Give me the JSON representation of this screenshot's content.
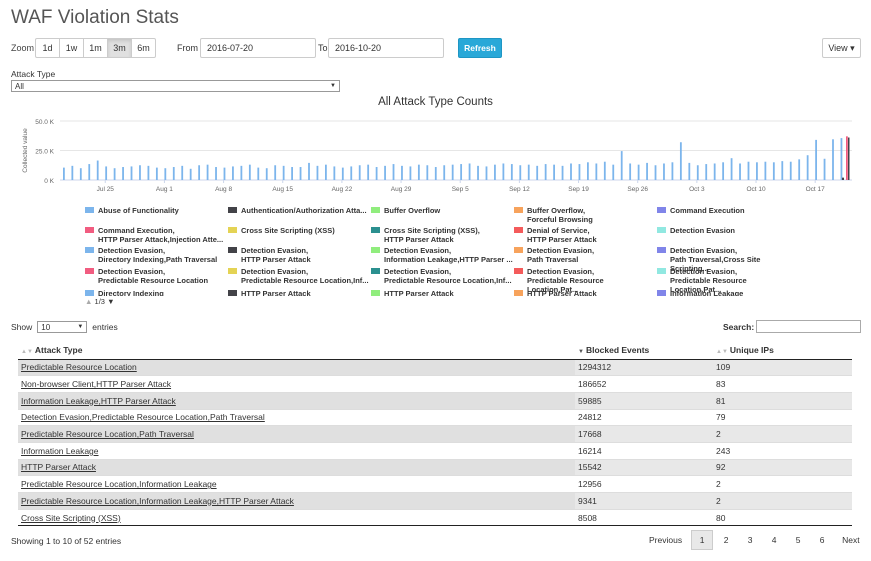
{
  "page_title": "WAF Violation Stats",
  "toolbar": {
    "zoom_label": "Zoom",
    "zoom_options": [
      "1d",
      "1w",
      "1m",
      "3m",
      "6m"
    ],
    "zoom_active": "3m",
    "from_label": "From",
    "from_value": "2016-07-20",
    "to_label": "To",
    "to_value": "2016-10-20",
    "refresh_label": "Refresh",
    "view_label": "View ▾"
  },
  "filter": {
    "label": "Attack Type",
    "selected": "All"
  },
  "chart_data": {
    "type": "bar",
    "title": "All Attack Type Counts",
    "ylabel": "Collected value",
    "ylim": [
      0,
      50000
    ],
    "y_ticks": [
      "0 K",
      "25.0 K",
      "50.0 K"
    ],
    "x_ticks": [
      "Jul 25",
      "Aug 1",
      "Aug 8",
      "Aug 15",
      "Aug 22",
      "Aug 29",
      "Sep 5",
      "Sep 12",
      "Sep 19",
      "Sep 26",
      "Oct 3",
      "Oct 10",
      "Oct 17"
    ],
    "x_start": "2016-07-20",
    "daily_values": [
      10500,
      12000,
      10000,
      13500,
      16500,
      11500,
      10000,
      11000,
      11500,
      12500,
      12000,
      10500,
      10000,
      11000,
      12000,
      9500,
      12500,
      13000,
      11000,
      10500,
      11500,
      12000,
      13000,
      10500,
      10000,
      12500,
      12000,
      11000,
      11000,
      14500,
      12000,
      13000,
      11500,
      10500,
      11500,
      12500,
      13000,
      11000,
      12000,
      13500,
      12000,
      11500,
      13000,
      12500,
      11000,
      12500,
      13000,
      13500,
      14000,
      12000,
      11500,
      13000,
      14000,
      13500,
      12500,
      13000,
      12000,
      13500,
      13000,
      12000,
      14000,
      13500,
      15000,
      14000,
      15500,
      13000,
      24500,
      14000,
      13000,
      14500,
      12500,
      14000,
      15000,
      32000,
      14500,
      12500,
      13500,
      14000,
      15000,
      18500,
      14000,
      15500,
      15000,
      15500,
      15000,
      16000,
      15500,
      17500,
      21000,
      34000,
      18000,
      34500,
      35500
    ],
    "series_colors": [
      "#7cb5ec",
      "#434348",
      "#90ed7d",
      "#f7a35c",
      "#8085e9",
      "#f15c80"
    ]
  },
  "legend": {
    "items": [
      {
        "label": "Abuse of Functionality",
        "color": "#7cb5ec"
      },
      {
        "label": "Authentication/Authorization Atta...",
        "color": "#434348"
      },
      {
        "label": "Buffer Overflow",
        "color": "#90ed7d"
      },
      {
        "label": "Buffer Overflow,\nForceful Browsing",
        "color": "#f7a35c"
      },
      {
        "label": "Command Execution",
        "color": "#8085e9"
      },
      {
        "label": "Command Execution,\nHTTP Parser Attack,Injection Atte...",
        "color": "#f15c80"
      },
      {
        "label": "Cross Site Scripting (XSS)",
        "color": "#e4d354"
      },
      {
        "label": "Cross Site Scripting (XSS),\nHTTP Parser Attack",
        "color": "#2b908f"
      },
      {
        "label": "Denial of Service,\nHTTP Parser Attack",
        "color": "#f45b5b"
      },
      {
        "label": "Detection Evasion",
        "color": "#91e8e1"
      },
      {
        "label": "Detection Evasion,\nDirectory Indexing,Path Traversal",
        "color": "#7cb5ec"
      },
      {
        "label": "Detection Evasion,\nHTTP Parser Attack",
        "color": "#434348"
      },
      {
        "label": "Detection Evasion,\nInformation Leakage,HTTP Parser ...",
        "color": "#90ed7d"
      },
      {
        "label": "Detection Evasion,\nPath Traversal",
        "color": "#f7a35c"
      },
      {
        "label": "Detection Evasion,\nPath Traversal,Cross Site Scripting...",
        "color": "#8085e9"
      },
      {
        "label": "Detection Evasion,\nPredictable Resource Location",
        "color": "#f15c80"
      },
      {
        "label": "Detection Evasion,\nPredictable Resource Location,Inf...",
        "color": "#e4d354"
      },
      {
        "label": "Detection Evasion,\nPredictable Resource Location,Inf...",
        "color": "#2b908f"
      },
      {
        "label": "Detection Evasion,\nPredictable Resource Location,Pat...",
        "color": "#f45b5b"
      },
      {
        "label": "Detection Evasion,\nPredictable Resource Location,Pat...",
        "color": "#91e8e1"
      },
      {
        "label": "Directory Indexing",
        "color": "#7cb5ec"
      },
      {
        "label": "HTTP Parser Attack",
        "color": "#434348"
      },
      {
        "label": "HTTP Parser Attack",
        "color": "#90ed7d"
      },
      {
        "label": "HTTP Parser Attack",
        "color": "#f7a35c"
      },
      {
        "label": "Information Leakage",
        "color": "#8085e9"
      }
    ],
    "page_indicator": "1/3"
  },
  "table_controls": {
    "show_label": "Show",
    "entries_value": "10",
    "entries_label": "entries",
    "search_label": "Search:"
  },
  "table": {
    "headers": [
      "Attack Type",
      "Blocked Events",
      "Unique IPs"
    ],
    "rows": [
      [
        "Predictable Resource Location",
        "1294312",
        "109"
      ],
      [
        "Non-browser Client,HTTP Parser Attack",
        "186652",
        "83"
      ],
      [
        "Information Leakage,HTTP Parser Attack",
        "59885",
        "81"
      ],
      [
        "Detection Evasion,Predictable Resource Location,Path Traversal",
        "24812",
        "79"
      ],
      [
        "Predictable Resource Location,Path Traversal",
        "17668",
        "2"
      ],
      [
        "Information Leakage",
        "16214",
        "243"
      ],
      [
        "HTTP Parser Attack",
        "15542",
        "92"
      ],
      [
        "Predictable Resource Location,Information Leakage",
        "12956",
        "2"
      ],
      [
        "Predictable Resource Location,Information Leakage,HTTP Parser Attack",
        "9341",
        "2"
      ],
      [
        "Cross Site Scripting (XSS)",
        "8508",
        "80"
      ]
    ]
  },
  "footer": {
    "showing_text": "Showing 1 to 10 of 52 entries",
    "previous_label": "Previous",
    "pages": [
      "1",
      "2",
      "3",
      "4",
      "5",
      "6"
    ],
    "current_page": "1",
    "next_label": "Next"
  }
}
